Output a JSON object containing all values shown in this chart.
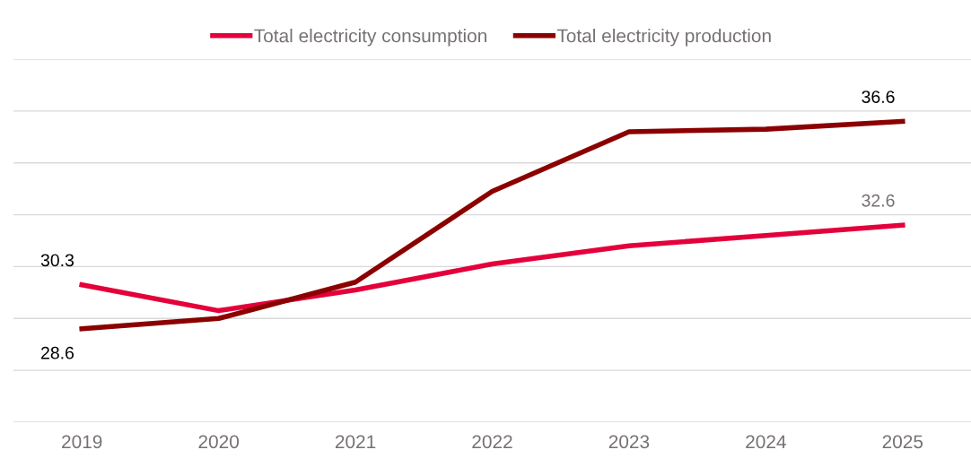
{
  "chart_data": {
    "type": "line",
    "categories": [
      "2019",
      "2020",
      "2021",
      "2022",
      "2023",
      "2024",
      "2025"
    ],
    "series": [
      {
        "name": "Total electricity consumption",
        "color": "#e4003b",
        "values": [
          30.3,
          29.3,
          30.1,
          31.1,
          31.8,
          32.2,
          32.6
        ],
        "value_labels": [
          "30.3",
          null,
          null,
          null,
          null,
          null,
          "32.6"
        ]
      },
      {
        "name": "Total electricity production",
        "color": "#8b0000",
        "values": [
          28.6,
          29.0,
          30.4,
          33.9,
          36.2,
          36.3,
          36.6
        ],
        "value_labels": [
          "28.6",
          null,
          null,
          null,
          null,
          null,
          "36.6"
        ]
      }
    ],
    "ylim": [
      25,
      39
    ],
    "yticks": [
      {
        "value": 25,
        "label": null
      },
      {
        "value": 27,
        "label": null
      },
      {
        "value": 29,
        "label": null
      },
      {
        "value": 31,
        "label": null
      },
      {
        "value": 33,
        "label": null
      },
      {
        "value": 35,
        "label": null
      },
      {
        "value": 37,
        "label": null
      },
      {
        "value": 39,
        "label": null
      }
    ],
    "grid": "y",
    "legend": "top",
    "tick_labels": "x",
    "marker": "none",
    "line_style": "solid"
  }
}
